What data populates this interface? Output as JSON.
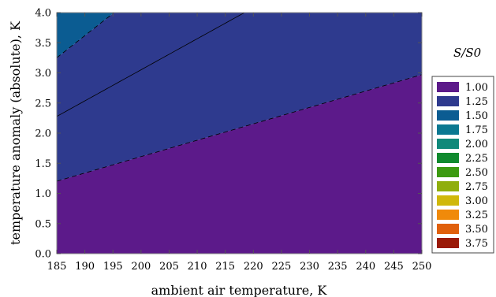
{
  "chart_data": {
    "type": "contour",
    "title": "",
    "xlabel": "ambient air temperature, K",
    "ylabel": "temperature anomaly (absolute), K",
    "xlim": [
      185,
      250
    ],
    "ylim": [
      0.0,
      4.0
    ],
    "xticks": [
      "185",
      "190",
      "195",
      "200",
      "205",
      "210",
      "215",
      "220",
      "225",
      "230",
      "235",
      "240",
      "245",
      "250"
    ],
    "yticks": [
      "0.0",
      "0.5",
      "1.0",
      "1.5",
      "2.0",
      "2.5",
      "3.0",
      "3.5",
      "4.0"
    ],
    "colorbar_title": "S/S0",
    "levels": [
      1.0,
      1.125,
      1.25,
      1.375,
      1.5,
      1.625,
      1.75,
      1.875,
      2.0,
      2.125,
      2.25,
      2.375,
      2.5,
      2.625,
      2.75,
      2.875,
      3.0,
      3.125,
      3.25,
      3.375,
      3.5,
      3.625,
      3.75
    ],
    "legend": [
      {
        "label": "1.00",
        "color": "#5c1a8a"
      },
      {
        "label": "1.25",
        "color": "#2e3a8e"
      },
      {
        "label": "1.50",
        "color": "#0b5c92"
      },
      {
        "label": "1.75",
        "color": "#0b7891"
      },
      {
        "label": "2.00",
        "color": "#10897a"
      },
      {
        "label": "2.25",
        "color": "#108a2e"
      },
      {
        "label": "2.50",
        "color": "#3c9a10"
      },
      {
        "label": "2.75",
        "color": "#8fae0c"
      },
      {
        "label": "3.00",
        "color": "#d0b80a"
      },
      {
        "label": "3.25",
        "color": "#f08a0a"
      },
      {
        "label": "3.50",
        "color": "#e0600c"
      },
      {
        "label": "3.75",
        "color": "#9a1a08"
      }
    ]
  }
}
